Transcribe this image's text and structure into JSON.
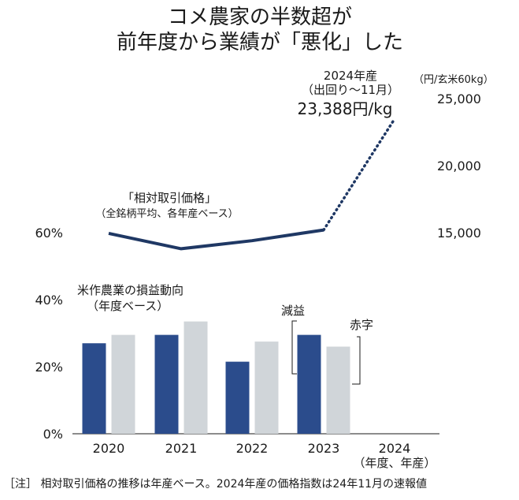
{
  "chart_data": {
    "type": "bar",
    "title_lines": [
      "コメ農家の半数超が",
      "前年度から業績が「悪化」した"
    ],
    "categories": [
      "2020",
      "2021",
      "2022",
      "2023",
      "2024"
    ],
    "x_unit": "（年度、年産）",
    "left_axis": {
      "ticks": [
        "0%",
        "20%",
        "40%",
        "60%"
      ],
      "ylim": [
        0,
        60
      ]
    },
    "right_axis": {
      "unit": "（円/玄米60kg）",
      "ticks": [
        "15,000",
        "20,000",
        "25,000"
      ],
      "ylim": [
        15000,
        25000
      ]
    },
    "series": [
      {
        "name": "減益",
        "values": [
          27,
          29.5,
          21.5,
          29.5,
          null
        ],
        "color": "#2b4c8c"
      },
      {
        "name": "赤字",
        "values": [
          29.5,
          33.5,
          27.5,
          26,
          null
        ],
        "color": "#d0d5d9"
      }
    ],
    "bar_group_title": [
      "米作農業の損益動向",
      "（年度ベース）"
    ],
    "line_series": {
      "name_lines": [
        "「相対取引価格」",
        "（全銘柄平均、各年産ベース）"
      ],
      "values": [
        14950,
        13800,
        14400,
        15200,
        23388
      ],
      "color": "#1f3864"
    },
    "annotation_2024": [
      "2024年産",
      "（出回り〜11月）",
      "23,388円/kg"
    ],
    "note": "［注］ 相対取引価格の推移は年産ベース。2024年産の価格指数は24年11月の速報値"
  }
}
